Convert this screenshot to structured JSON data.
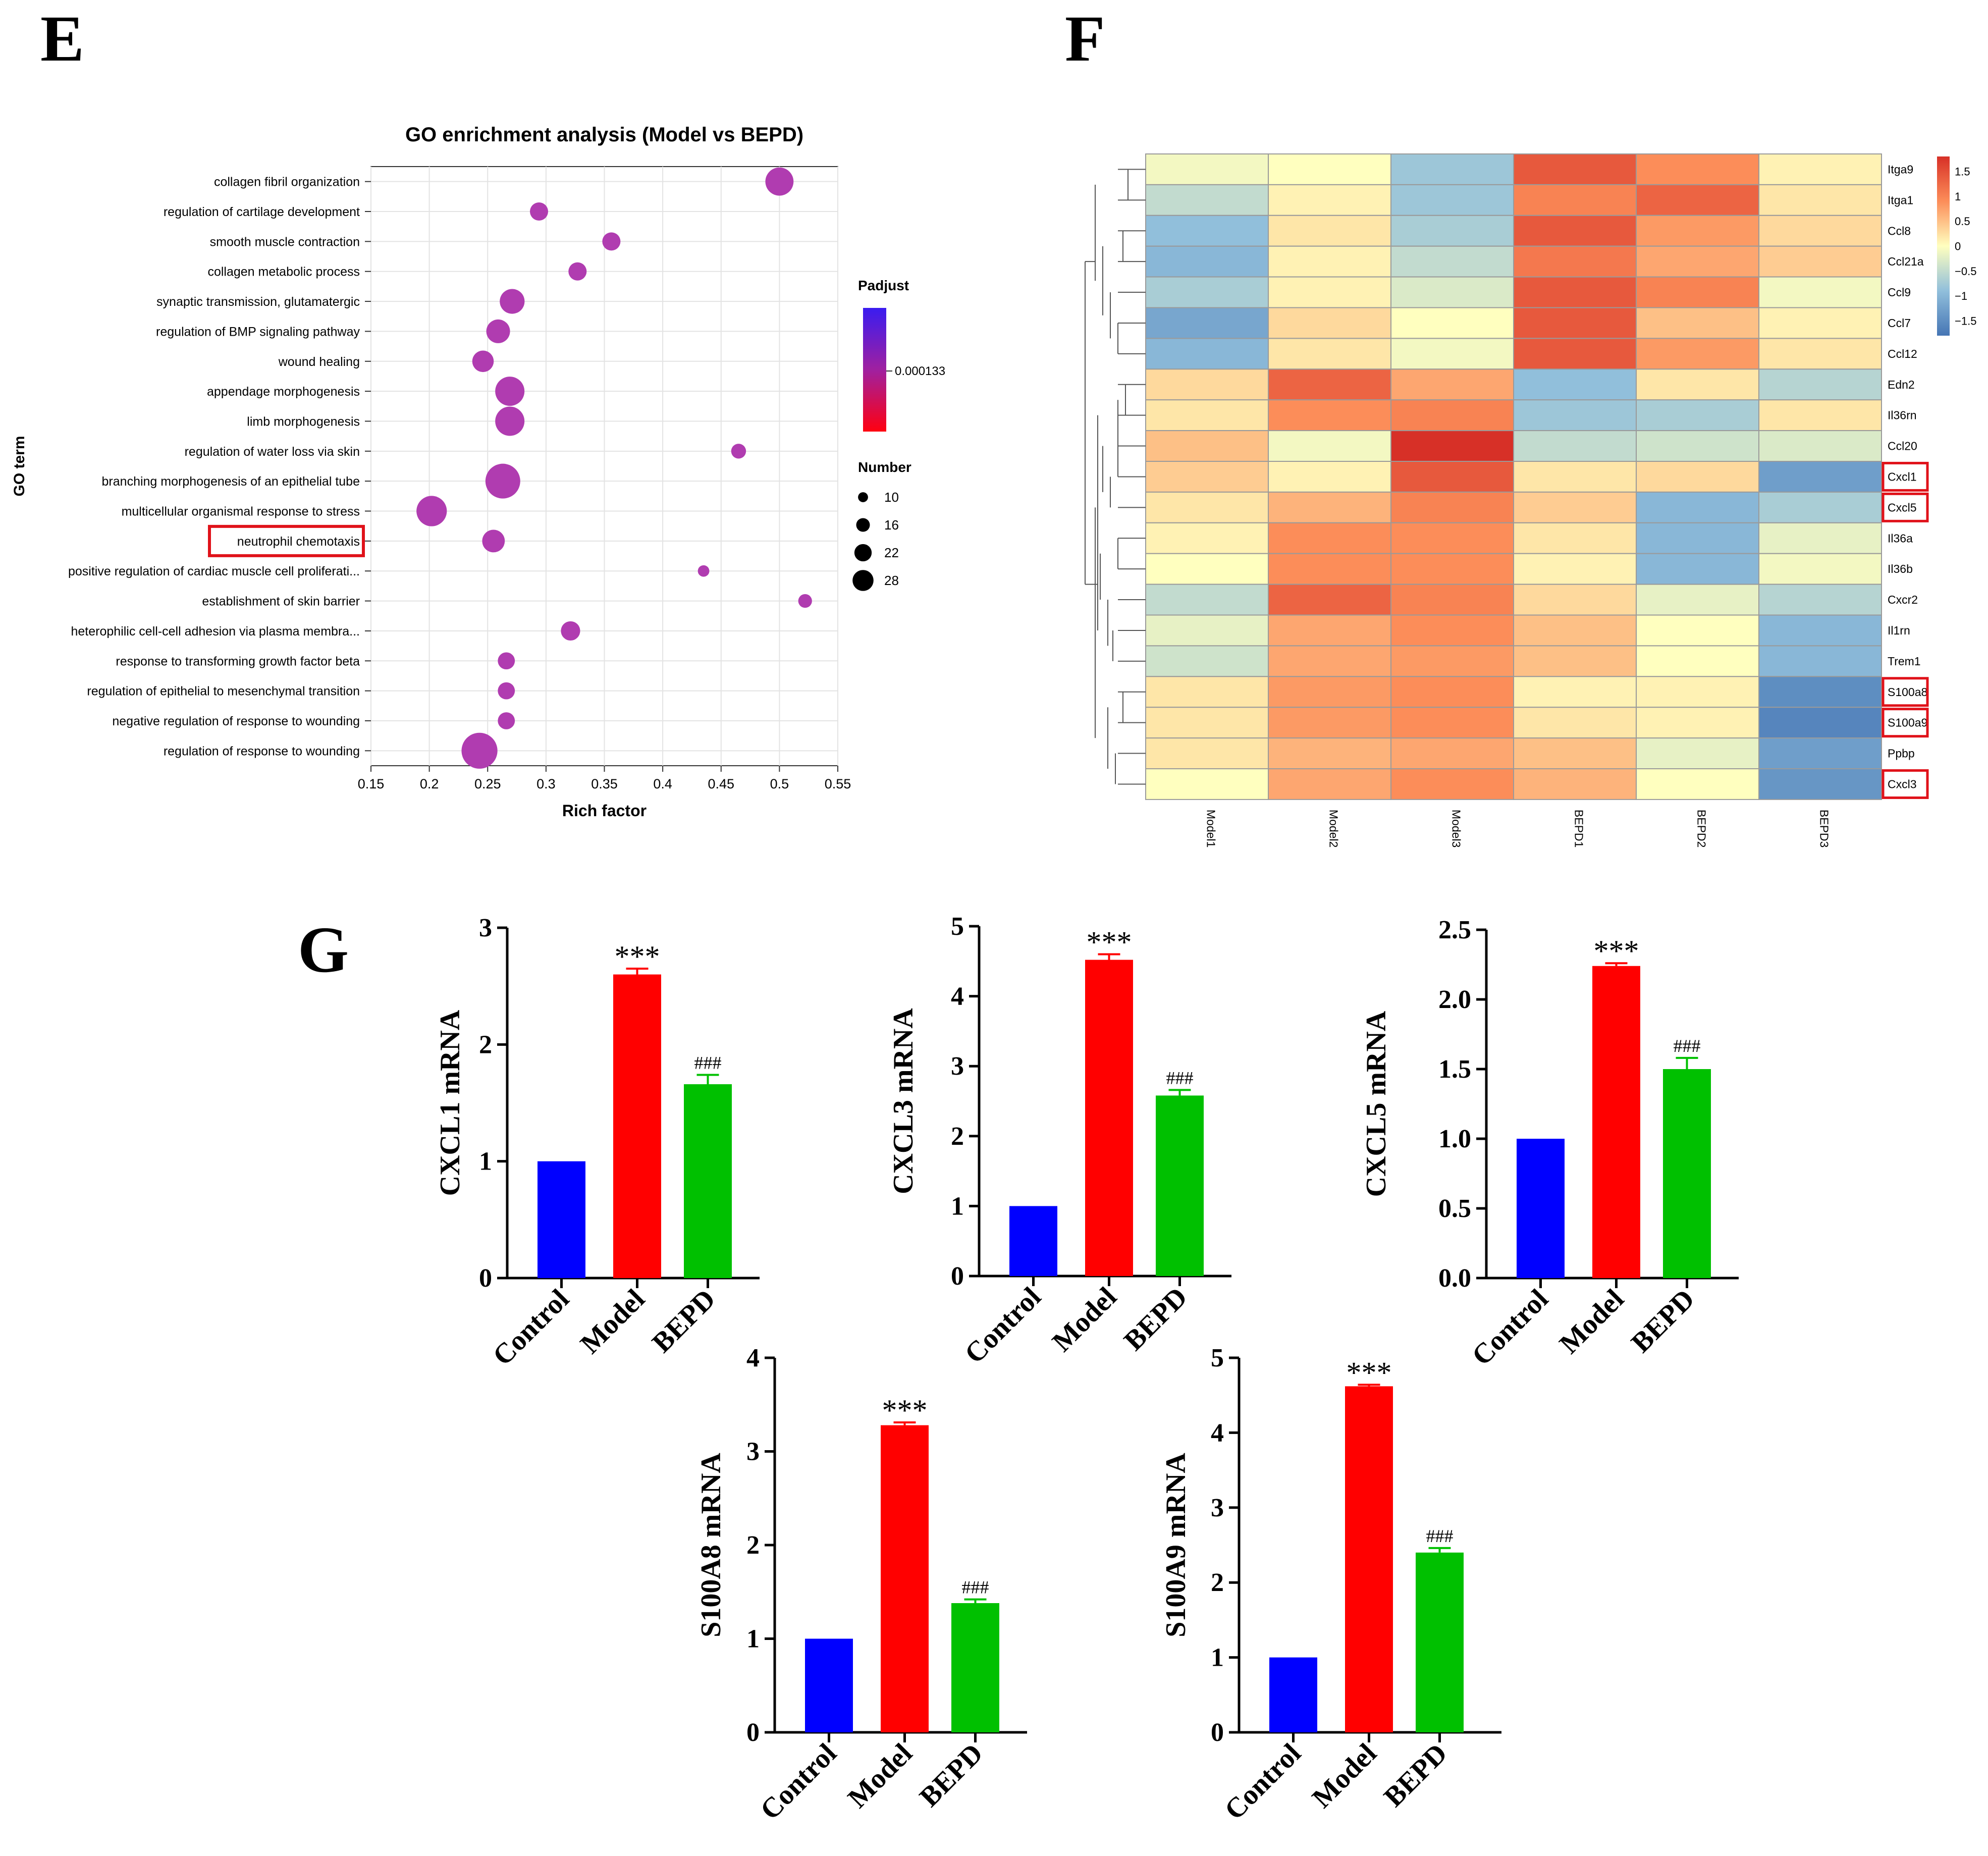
{
  "panels": {
    "e": "E",
    "f": "F",
    "g": "G"
  },
  "colors": {
    "bubble": "#b03cb0",
    "highlight": "#e0121a",
    "control": "#0000ff",
    "model": "#ff0000",
    "bepd": "#00c000",
    "grid": "#e3e3e3"
  },
  "chart_data": [
    {
      "id": "go-enrichment",
      "type": "scatter",
      "title": "GO enrichment analysis (Model vs BEPD)",
      "xlabel": "Rich factor",
      "ylabel": "GO term",
      "xlim": [
        0.15,
        0.55
      ],
      "xticks": [
        "0.15",
        "0.2",
        "0.25",
        "0.3",
        "0.35",
        "0.4",
        "0.45",
        "0.5",
        "0.55"
      ],
      "highlighted_term": "neutrophil chemotaxis",
      "terms": [
        {
          "term": "collagen fibril organization",
          "rich_factor": 0.5,
          "number": 19
        },
        {
          "term": "regulation of cartilage development",
          "rich_factor": 0.294,
          "number": 10
        },
        {
          "term": "smooth muscle contraction",
          "rich_factor": 0.356,
          "number": 10
        },
        {
          "term": "collagen metabolic process",
          "rich_factor": 0.327,
          "number": 10
        },
        {
          "term": "synaptic transmission, glutamatergic",
          "rich_factor": 0.271,
          "number": 16
        },
        {
          "term": "regulation of BMP signaling pathway",
          "rich_factor": 0.259,
          "number": 15
        },
        {
          "term": "wound healing",
          "rich_factor": 0.246,
          "number": 13
        },
        {
          "term": "appendage morphogenesis",
          "rich_factor": 0.269,
          "number": 20
        },
        {
          "term": "limb morphogenesis",
          "rich_factor": 0.269,
          "number": 20
        },
        {
          "term": "regulation of water loss via skin",
          "rich_factor": 0.465,
          "number": 7
        },
        {
          "term": "branching morphogenesis of an epithelial tube",
          "rich_factor": 0.263,
          "number": 25
        },
        {
          "term": "multicellular organismal response to stress",
          "rich_factor": 0.202,
          "number": 21
        },
        {
          "term": "neutrophil chemotaxis",
          "rich_factor": 0.255,
          "number": 14
        },
        {
          "term": "positive regulation of cardiac muscle cell proliferati...",
          "rich_factor": 0.435,
          "number": 4
        },
        {
          "term": "establishment of skin barrier",
          "rich_factor": 0.522,
          "number": 6
        },
        {
          "term": "heterophilic cell-cell adhesion via plasma membra...",
          "rich_factor": 0.321,
          "number": 11
        },
        {
          "term": "response to transforming growth factor beta",
          "rich_factor": 0.266,
          "number": 9
        },
        {
          "term": "regulation of epithelial to mesenchymal transition",
          "rich_factor": 0.266,
          "number": 9
        },
        {
          "term": "negative regulation of response to wounding",
          "rich_factor": 0.266,
          "number": 9
        },
        {
          "term": "regulation of response to wounding",
          "rich_factor": 0.243,
          "number": 26
        }
      ],
      "color_legend": {
        "title": "Padjust",
        "label": "0.000133"
      },
      "size_legend": {
        "title": "Number",
        "values": [
          10,
          16,
          22,
          28
        ],
        "labels": [
          "10",
          "16",
          "22",
          "28"
        ]
      }
    },
    {
      "id": "heatmap",
      "type": "heatmap",
      "columns": [
        "Model1",
        "Model2",
        "Model3",
        "BEPD1",
        "BEPD2",
        "BEPD3"
      ],
      "rows": [
        "Itga9",
        "Itga1",
        "Ccl8",
        "Ccl21a",
        "Ccl9",
        "Ccl7",
        "Ccl12",
        "Edn2",
        "Il36rn",
        "Ccl20",
        "Cxcl1",
        "Cxcl5",
        "Il36a",
        "Il36b",
        "Cxcr2",
        "Il1rn",
        "Trem1",
        "S100a8",
        "S100a9",
        "Ppbp",
        "Cxcl3"
      ],
      "highlighted_rows": [
        "Cxcl1",
        "Cxcl5",
        "S100a8",
        "S100a9",
        "Cxcl3"
      ],
      "values": [
        [
          -0.1,
          0.0,
          -0.8,
          1.4,
          0.9,
          0.1
        ],
        [
          -0.5,
          0.1,
          -0.8,
          1.0,
          1.3,
          0.2
        ],
        [
          -0.9,
          0.2,
          -0.7,
          1.4,
          0.8,
          0.3
        ],
        [
          -1.0,
          0.1,
          -0.5,
          1.1,
          0.7,
          0.4
        ],
        [
          -0.7,
          0.1,
          -0.3,
          1.4,
          1.0,
          -0.1
        ],
        [
          -1.2,
          0.3,
          0.0,
          1.4,
          0.5,
          0.1
        ],
        [
          -1.0,
          0.2,
          -0.1,
          1.4,
          0.8,
          0.2
        ],
        [
          0.3,
          1.3,
          0.7,
          -0.9,
          0.2,
          -0.6
        ],
        [
          0.2,
          0.9,
          1.0,
          -0.8,
          -0.7,
          0.2
        ],
        [
          0.5,
          -0.1,
          1.8,
          -0.5,
          -0.4,
          -0.3
        ],
        [
          0.4,
          0.1,
          1.4,
          0.2,
          0.3,
          -1.3
        ],
        [
          0.2,
          0.6,
          1.0,
          0.4,
          -1.0,
          -0.7
        ],
        [
          0.1,
          0.9,
          0.9,
          0.2,
          -1.0,
          -0.2
        ],
        [
          0.0,
          0.9,
          0.9,
          0.1,
          -1.0,
          -0.1
        ],
        [
          -0.5,
          1.3,
          1.0,
          0.3,
          -0.2,
          -0.6
        ],
        [
          -0.2,
          0.7,
          0.9,
          0.5,
          0.0,
          -1.0
        ],
        [
          -0.4,
          0.7,
          0.8,
          0.5,
          0.0,
          -1.0
        ],
        [
          0.2,
          0.8,
          0.9,
          0.1,
          0.1,
          -1.5
        ],
        [
          0.2,
          0.8,
          0.9,
          0.2,
          0.1,
          -1.6
        ],
        [
          0.2,
          0.6,
          0.7,
          0.5,
          -0.2,
          -1.3
        ],
        [
          0.0,
          0.7,
          0.9,
          0.6,
          0.0,
          -1.4
        ]
      ],
      "colorbar": {
        "range": [
          -1.8,
          1.8
        ],
        "ticks": [
          "1.5",
          "1",
          "0.5",
          "0",
          "−0.5",
          "−1",
          "−1.5"
        ],
        "tick_values": [
          1.5,
          1,
          0.5,
          0,
          -0.5,
          -1,
          -1.5
        ]
      }
    },
    {
      "id": "cxcl1",
      "type": "bar",
      "ylabel": "CXCL1 mRNA",
      "categories": [
        "Control",
        "Model",
        "BEPD"
      ],
      "values": [
        1.0,
        2.6,
        1.66
      ],
      "errors": [
        0,
        0.05,
        0.08
      ],
      "annotations": [
        "",
        "***",
        "###"
      ],
      "ylim": [
        0,
        3
      ],
      "yticks": [
        "0",
        "1",
        "2",
        "3"
      ],
      "ytick_values": [
        0,
        1,
        2,
        3
      ]
    },
    {
      "id": "cxcl3",
      "type": "bar",
      "ylabel": "CXCL3 mRNA",
      "categories": [
        "Control",
        "Model",
        "BEPD"
      ],
      "values": [
        1.0,
        4.52,
        2.58
      ],
      "errors": [
        0,
        0.08,
        0.08
      ],
      "annotations": [
        "",
        "***",
        "###"
      ],
      "ylim": [
        0,
        5
      ],
      "yticks": [
        "0",
        "1",
        "2",
        "3",
        "4",
        "5"
      ],
      "ytick_values": [
        0,
        1,
        2,
        3,
        4,
        5
      ]
    },
    {
      "id": "cxcl5",
      "type": "bar",
      "ylabel": "CXCL5 mRNA",
      "categories": [
        "Control",
        "Model",
        "BEPD"
      ],
      "values": [
        1.0,
        2.24,
        1.5
      ],
      "errors": [
        0,
        0.02,
        0.08
      ],
      "annotations": [
        "",
        "***",
        "###"
      ],
      "ylim": [
        0,
        2.5
      ],
      "yticks": [
        "0.0",
        "0.5",
        "1.0",
        "1.5",
        "2.0",
        "2.5"
      ],
      "ytick_values": [
        0,
        0.5,
        1,
        1.5,
        2,
        2.5
      ]
    },
    {
      "id": "s100a8",
      "type": "bar",
      "ylabel": "S100A8 mRNA",
      "categories": [
        "Control",
        "Model",
        "BEPD"
      ],
      "values": [
        1.0,
        3.28,
        1.38
      ],
      "errors": [
        0,
        0.03,
        0.04
      ],
      "annotations": [
        "",
        "***",
        "###"
      ],
      "ylim": [
        0,
        4
      ],
      "yticks": [
        "0",
        "1",
        "2",
        "3",
        "4"
      ],
      "ytick_values": [
        0,
        1,
        2,
        3,
        4
      ]
    },
    {
      "id": "s100a9",
      "type": "bar",
      "ylabel": "S100A9 mRNA",
      "categories": [
        "Control",
        "Model",
        "BEPD"
      ],
      "values": [
        1.0,
        4.62,
        2.4
      ],
      "errors": [
        0,
        0.02,
        0.06
      ],
      "annotations": [
        "",
        "***",
        "###"
      ],
      "ylim": [
        0,
        5
      ],
      "yticks": [
        "0",
        "1",
        "2",
        "3",
        "4",
        "5"
      ],
      "ytick_values": [
        0,
        1,
        2,
        3,
        4,
        5
      ]
    }
  ]
}
